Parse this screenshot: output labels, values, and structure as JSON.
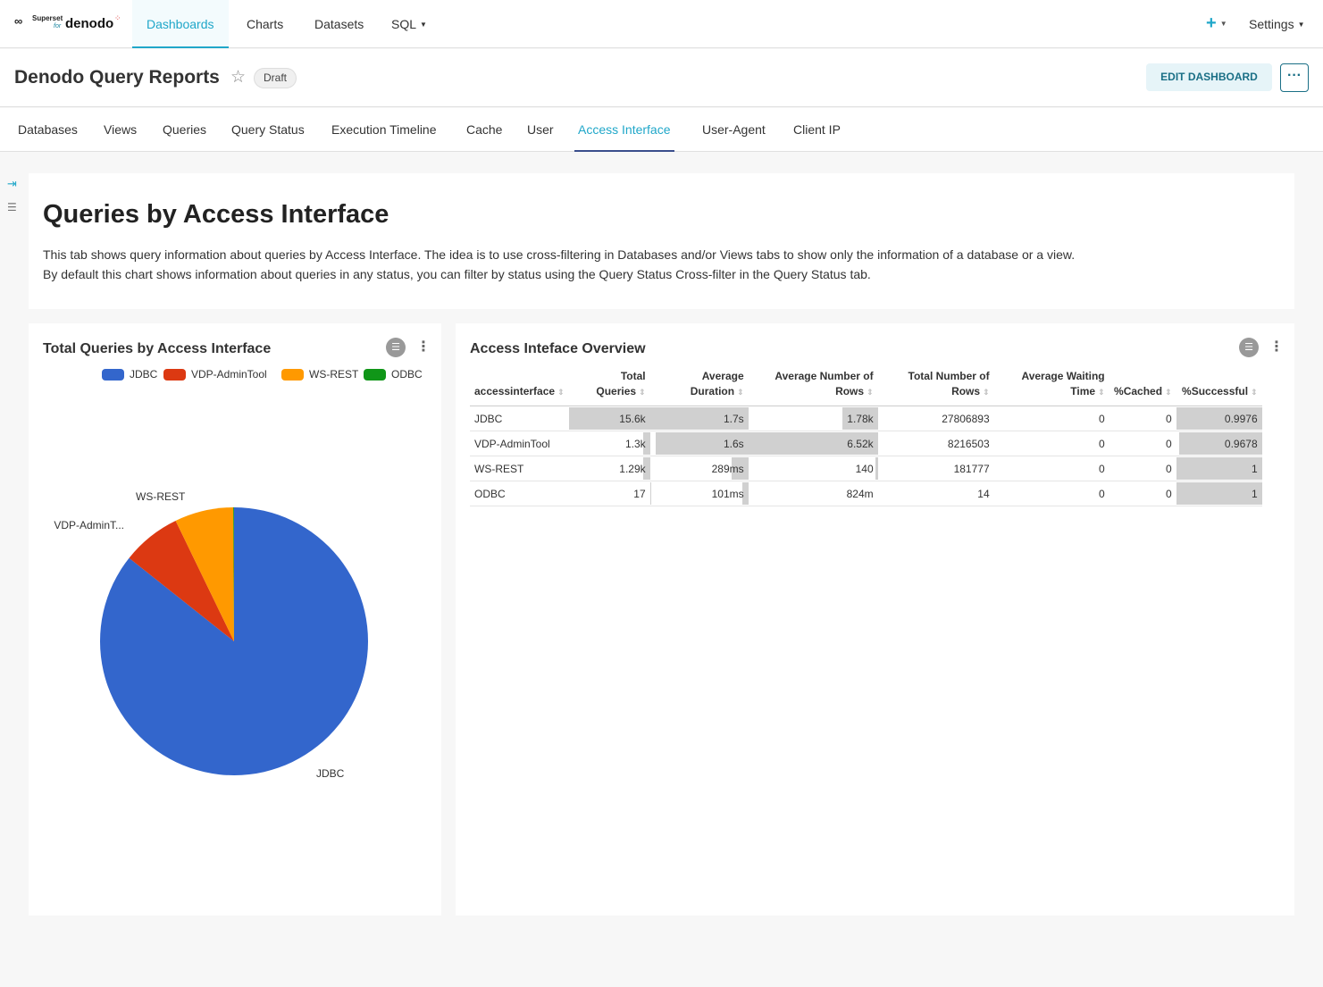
{
  "nav": {
    "logo": {
      "superset": "Superset",
      "for": "for",
      "brand": "denodo"
    },
    "links": [
      "Dashboards",
      "Charts",
      "Datasets",
      "SQL"
    ],
    "active": "Dashboards",
    "plus_label": "+",
    "settings_label": "Settings"
  },
  "dashboard": {
    "title": "Denodo Query Reports",
    "badge": "Draft",
    "edit_label": "EDIT DASHBOARD",
    "more_label": "···"
  },
  "tabs": [
    "Databases",
    "Views",
    "Queries",
    "Query Status",
    "Execution Timeline",
    "Cache",
    "User",
    "Access Interface",
    "User-Agent",
    "Client IP"
  ],
  "active_tab": "Access Interface",
  "markdown": {
    "heading": "Queries by Access Interface",
    "line1": "This tab shows query information about queries by Access Interface. The idea is to use cross-filtering in Databases and/or Views tabs to show only the information of a database or a view.",
    "line2": "By default this chart shows information about queries in any status, you can filter by status using the Query Status Cross-filter in the Query Status tab."
  },
  "pie_card": {
    "title": "Total Queries by Access Interface"
  },
  "table_card": {
    "title": "Access Inteface Overview"
  },
  "chart_data": [
    {
      "type": "pie",
      "title": "Total Queries by Access Interface",
      "legend_position": "top-right",
      "categories": [
        "JDBC",
        "VDP-AdminTool",
        "WS-REST",
        "ODBC"
      ],
      "labels": [
        "JDBC",
        "VDP-AdminT...",
        "WS-REST",
        ""
      ],
      "values": [
        15600,
        1300,
        1290,
        17
      ],
      "colors": [
        "#3366cc",
        "#dc3912",
        "#ff9900",
        "#109618"
      ]
    },
    {
      "type": "table",
      "columns": [
        {
          "label": [
            "",
            "accessinterface"
          ],
          "align": "left"
        },
        {
          "label": [
            "Total",
            "Queries"
          ]
        },
        {
          "label": [
            "Average",
            "Duration"
          ]
        },
        {
          "label": [
            "Average Number of",
            "Rows"
          ]
        },
        {
          "label": [
            "Total Number of",
            "Rows"
          ]
        },
        {
          "label": [
            "Average Waiting",
            "Time"
          ]
        },
        {
          "label": [
            "",
            "%Cached"
          ]
        },
        {
          "label": [
            "",
            "%Successful"
          ]
        }
      ],
      "rows": [
        [
          "JDBC",
          "15.6k",
          "1.7s",
          "1.78k",
          "27806893",
          "0",
          "0",
          "0.9976"
        ],
        [
          "VDP-AdminTool",
          "1.3k",
          "1.6s",
          "6.52k",
          "8216503",
          "0",
          "0",
          "0.9678"
        ],
        [
          "WS-REST",
          "1.29k",
          "289ms",
          "140",
          "181777",
          "0",
          "0",
          "1"
        ],
        [
          "ODBC",
          "17",
          "101ms",
          "824m",
          "14",
          "0",
          "0",
          "1"
        ]
      ],
      "bar_fractions": {
        "1": [
          1.0,
          0.083,
          0.083,
          0.001
        ],
        "2": [
          1.0,
          0.94,
          0.17,
          0.06
        ],
        "3": [
          0.27,
          1.0,
          0.021,
          0.0001
        ],
        "7": [
          0.9976,
          0.9678,
          1,
          1
        ]
      }
    }
  ]
}
